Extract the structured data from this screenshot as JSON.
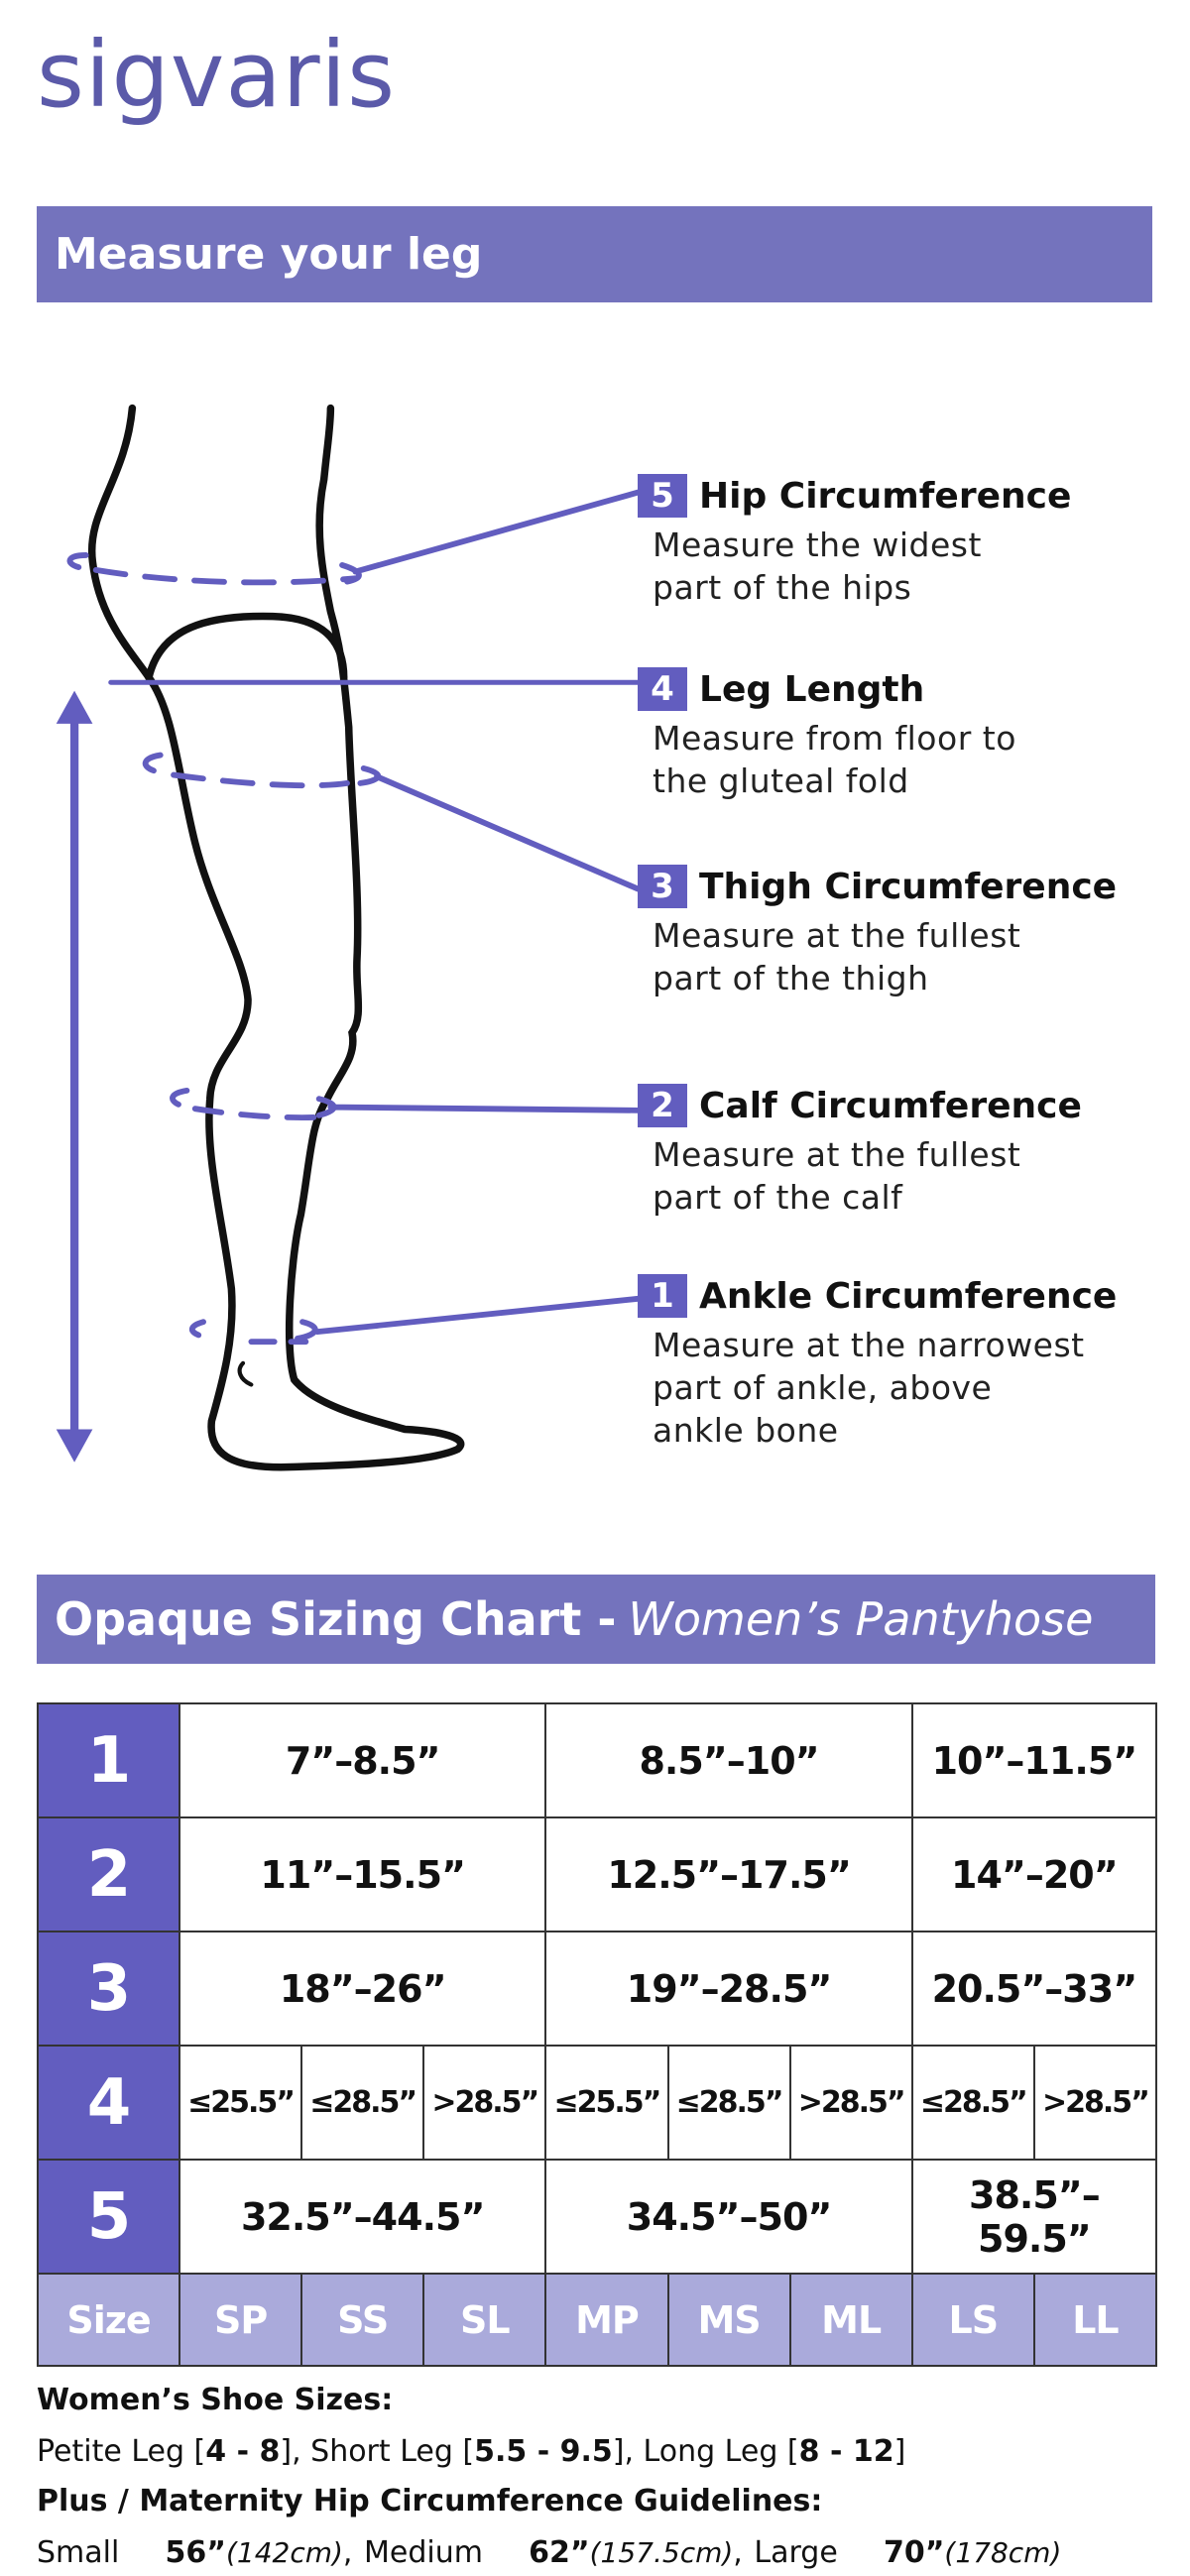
{
  "logo": "sigvaris",
  "section1": {
    "title": "Measure your leg"
  },
  "measurements": [
    {
      "num": "5",
      "title": "Hip Circumference",
      "desc": [
        "Measure the widest",
        "part of the hips"
      ]
    },
    {
      "num": "4",
      "title": "Leg Length",
      "desc": [
        "Measure from floor to",
        "the gluteal fold"
      ]
    },
    {
      "num": "3",
      "title": "Thigh Circumference",
      "desc": [
        "Measure at the fullest",
        "part of the thigh"
      ]
    },
    {
      "num": "2",
      "title": "Calf Circumference",
      "desc": [
        "Measure at the fullest",
        "part of the calf"
      ]
    },
    {
      "num": "1",
      "title": "Ankle Circumference",
      "desc": [
        "Measure at the narrowest",
        "part of ankle, above",
        "ankle bone"
      ]
    }
  ],
  "section2": {
    "title": "Opaque Sizing Chart -",
    "subtitle": "Women’s Pantyhose"
  },
  "table": {
    "rows": [
      {
        "num": "1",
        "cells": [
          "7”–8.5”",
          "8.5”–10”",
          "10”–11.5”"
        ]
      },
      {
        "num": "2",
        "cells": [
          "11”–15.5”",
          "12.5”–17.5”",
          "14”–20”"
        ]
      },
      {
        "num": "3",
        "cells": [
          "18”–26”",
          "19”–28.5”",
          "20.5”–33”"
        ]
      },
      {
        "num": "4",
        "cells": [
          "≤25.5”",
          "≤28.5”",
          ">28.5”",
          "≤25.5”",
          "≤28.5”",
          ">28.5”",
          "≤28.5”",
          ">28.5”"
        ]
      },
      {
        "num": "5",
        "cells": [
          "32.5”–44.5”",
          "34.5”–50”",
          "38.5”–59.5”"
        ]
      }
    ],
    "size_label": "Size",
    "sizes": [
      "SP",
      "SS",
      "SL",
      "MP",
      "MS",
      "ML",
      "LS",
      "LL"
    ]
  },
  "footer": {
    "shoe_heading": "Women’s Shoe Sizes:",
    "shoe": [
      {
        "label": "Petite Leg [",
        "value": "4 - 8",
        "end": "],"
      },
      {
        "label": " Short Leg [",
        "value": "5.5 - 9.5",
        "end": "],"
      },
      {
        "label": " Long Leg [",
        "value": "8 - 12",
        "end": "]"
      }
    ],
    "plus_heading": "Plus / Maternity Hip Circumference Guidelines:",
    "plus": [
      {
        "label": "Small",
        "value": "56”",
        "cm": "(142cm)",
        "sep": ","
      },
      {
        "label": "Medium",
        "value": "62”",
        "cm": "(157.5cm)",
        "sep": ","
      },
      {
        "label": "Large",
        "value": "70”",
        "cm": "(178cm)",
        "sep": ""
      }
    ]
  },
  "colors": {
    "brand": "#5b5aa9",
    "header": "#7473bd",
    "accent": "#625dbf",
    "size_row": "#aaaadb"
  }
}
